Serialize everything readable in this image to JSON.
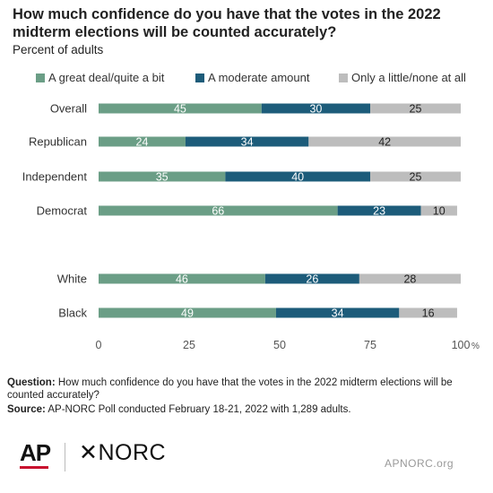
{
  "title": "How much confidence do you have that the votes in the 2022 midterm elections will be counted accurately?",
  "subtitle": "Percent of adults",
  "chart_data": {
    "type": "bar",
    "orientation": "horizontal",
    "stacked": true,
    "categories": [
      "Overall",
      "Republican",
      "Independent",
      "Democrat",
      "White",
      "Black"
    ],
    "series": [
      {
        "name": "A great deal/quite a bit",
        "color": "#6b9e86",
        "values": [
          45,
          24,
          35,
          66,
          46,
          49
        ]
      },
      {
        "name": "A moderate amount",
        "color": "#1d5c7a",
        "values": [
          30,
          34,
          40,
          23,
          26,
          34
        ]
      },
      {
        "name": "Only a little/none at all",
        "color": "#bdbdbd",
        "values": [
          25,
          42,
          25,
          10,
          28,
          16
        ]
      }
    ],
    "xlim": [
      0,
      100
    ],
    "xticks": [
      "0",
      "25",
      "50",
      "75",
      "100"
    ],
    "x_unit": "%",
    "legend": "top",
    "grid": false
  },
  "footer": {
    "question_label": "Question:",
    "question_text": "How much confidence do you have that the votes in the 2022 midterm elections will be counted accurately?",
    "source_label": "Source:",
    "source_text": "AP-NORC Poll conducted February 18-21, 2022 with 1,289 adults."
  },
  "logos": {
    "ap": "AP",
    "norc": "NORC",
    "site": "APNORC.org"
  }
}
